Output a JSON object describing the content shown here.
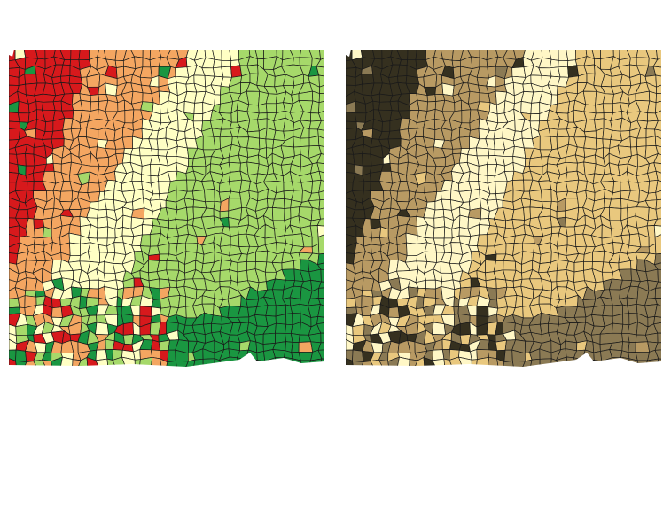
{
  "figure": {
    "maps": [
      {
        "id": "map-left",
        "scheme": "red-orange-cream-green",
        "colors": {
          "zone_1": "#d7191c",
          "zone_2": "#f4a661",
          "zone_3": "#ffffc4",
          "zone_4": "#a6d96a",
          "zone_5": "#1a9641",
          "outline": "#1a1a1a"
        }
      },
      {
        "id": "map-right",
        "scheme": "dark-brown-tan-cream",
        "colors": {
          "zone_1": "#35301f",
          "zone_2": "#b89a63",
          "zone_3": "#fff7c6",
          "zone_4": "#e9c87e",
          "zone_5": "#8b7a54",
          "outline": "#1a1a1a"
        }
      }
    ]
  }
}
